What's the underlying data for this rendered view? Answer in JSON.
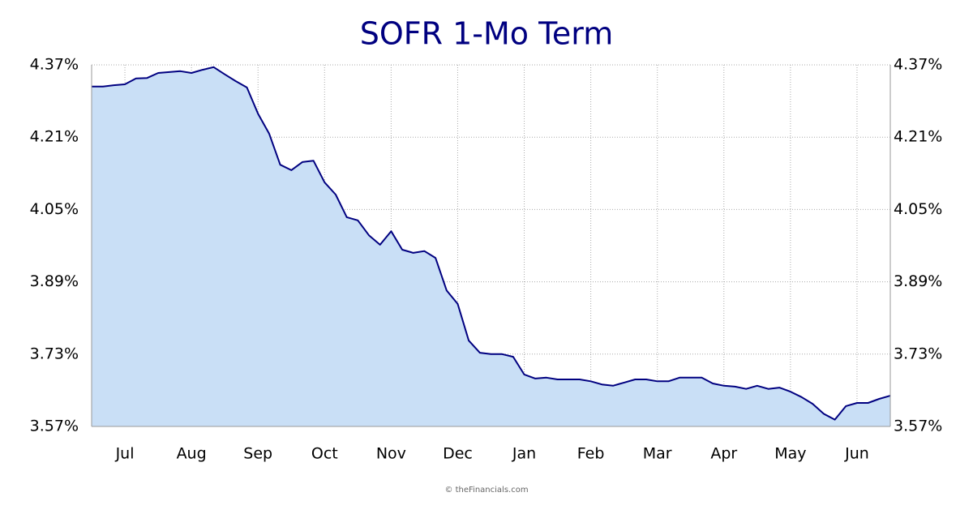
{
  "chart_data": {
    "type": "area",
    "title": "SOFR 1-Mo Term",
    "footer": "© theFinancials.com",
    "categories": [
      null,
      null,
      null,
      "Jul",
      null,
      null,
      null,
      null,
      null,
      "Aug",
      null,
      null,
      null,
      null,
      null,
      "Sep",
      null,
      null,
      null,
      null,
      null,
      "Oct",
      null,
      null,
      null,
      null,
      null,
      "Nov",
      null,
      null,
      null,
      null,
      null,
      "Dec",
      null,
      null,
      null,
      null,
      null,
      "Jan",
      null,
      null,
      null,
      null,
      null,
      "Feb",
      null,
      null,
      null,
      null,
      null,
      "Mar",
      null,
      null,
      null,
      null,
      null,
      "Apr",
      null,
      null,
      null,
      null,
      null,
      "May",
      null,
      null,
      null,
      null,
      null,
      "Jun",
      null,
      null,
      null
    ],
    "values": [
      4.322,
      4.322,
      4.325,
      4.327,
      4.34,
      4.341,
      4.352,
      4.354,
      4.356,
      4.352,
      4.359,
      4.365,
      4.349,
      4.334,
      4.32,
      4.262,
      4.218,
      4.149,
      4.137,
      4.155,
      4.158,
      4.11,
      4.083,
      4.033,
      4.026,
      3.993,
      3.972,
      4.002,
      3.961,
      3.954,
      3.958,
      3.943,
      3.871,
      3.841,
      3.76,
      3.733,
      3.73,
      3.73,
      3.724,
      3.685,
      3.676,
      3.678,
      3.674,
      3.674,
      3.674,
      3.67,
      3.663,
      3.66,
      3.667,
      3.674,
      3.674,
      3.67,
      3.67,
      3.678,
      3.678,
      3.678,
      3.665,
      3.66,
      3.658,
      3.653,
      3.66,
      3.653,
      3.656,
      3.647,
      3.635,
      3.62,
      3.598,
      3.585,
      3.615,
      3.622,
      3.622,
      3.631,
      3.638
    ],
    "color": "#000080",
    "fill": "#c9dff6",
    "ylim": [
      3.57,
      4.37
    ],
    "yticks": [
      {
        "value": 3.57,
        "label": "3.57%"
      },
      {
        "value": 3.73,
        "label": "3.73%"
      },
      {
        "value": 3.89,
        "label": "3.89%"
      },
      {
        "value": 4.05,
        "label": "4.05%"
      },
      {
        "value": 4.21,
        "label": "4.21%"
      },
      {
        "value": 4.37,
        "label": "4.37%"
      }
    ],
    "grid": true
  }
}
